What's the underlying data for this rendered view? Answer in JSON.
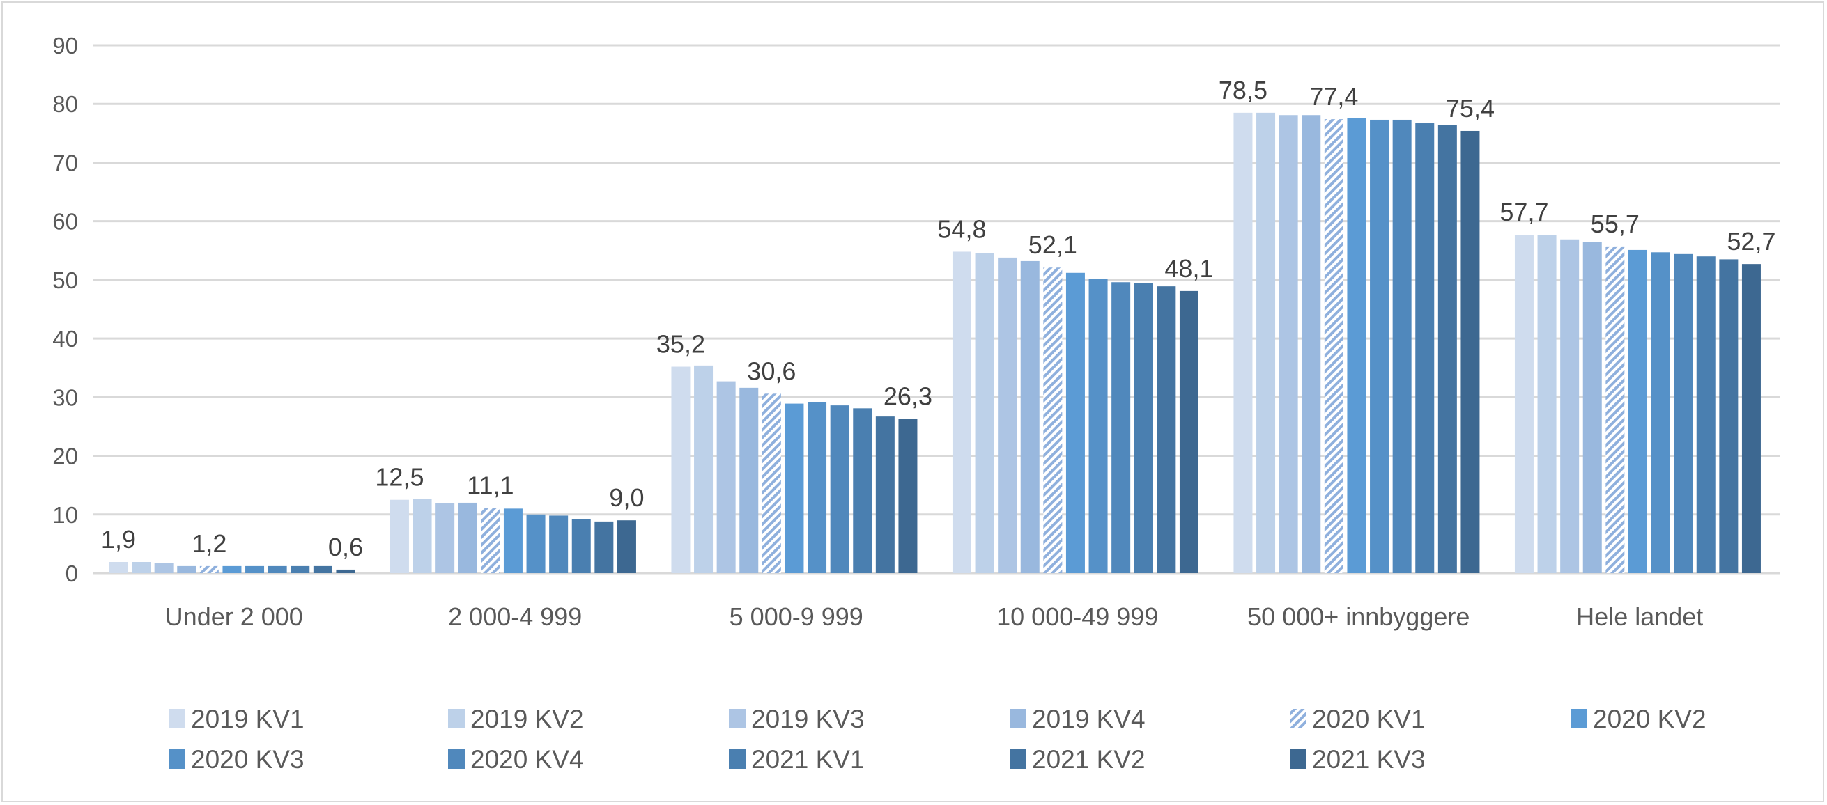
{
  "chart_data": {
    "type": "bar",
    "title": "",
    "xlabel": "",
    "ylabel": "",
    "ylim": [
      0,
      90
    ],
    "yticks": [
      0,
      10,
      20,
      30,
      40,
      50,
      60,
      70,
      80,
      90
    ],
    "grid": true,
    "legend_position": "bottom",
    "categories": [
      "Under 2 000",
      "2 000-4 999",
      "5 000-9 999",
      "10 000-49 999",
      "50 000+ innbyggere",
      "Hele landet"
    ],
    "series": [
      {
        "name": "2019 KV1",
        "color": "#cfdcee",
        "values": [
          1.9,
          12.5,
          35.2,
          54.8,
          78.5,
          57.7
        ],
        "labeled": true
      },
      {
        "name": "2019 KV2",
        "color": "#bdd1e9",
        "values": [
          1.9,
          12.6,
          35.4,
          54.6,
          78.5,
          57.6
        ]
      },
      {
        "name": "2019 KV3",
        "color": "#adc5e4",
        "values": [
          1.7,
          11.9,
          32.7,
          53.8,
          78.1,
          56.9
        ]
      },
      {
        "name": "2019 KV4",
        "color": "#99b8de",
        "values": [
          1.2,
          12.0,
          31.6,
          53.2,
          78.1,
          56.5
        ]
      },
      {
        "name": "2020 KV1",
        "color": "#8fb0dd",
        "pattern": "hatched",
        "values": [
          1.2,
          11.1,
          30.6,
          52.1,
          77.4,
          55.7
        ],
        "labeled": true
      },
      {
        "name": "2020 KV2",
        "color": "#5b9bd5",
        "values": [
          1.2,
          11.0,
          28.9,
          51.2,
          77.6,
          55.1
        ]
      },
      {
        "name": "2020 KV3",
        "color": "#5591c8",
        "values": [
          1.2,
          10.0,
          29.1,
          50.2,
          77.3,
          54.7
        ]
      },
      {
        "name": "2020 KV4",
        "color": "#5088bc",
        "values": [
          1.2,
          9.8,
          28.6,
          49.6,
          77.3,
          54.4
        ]
      },
      {
        "name": "2021 KV1",
        "color": "#4a7fb0",
        "values": [
          1.2,
          9.2,
          28.1,
          49.5,
          76.7,
          54.0
        ]
      },
      {
        "name": "2021 KV2",
        "color": "#4474a1",
        "values": [
          1.2,
          8.8,
          26.7,
          48.9,
          76.4,
          53.5
        ]
      },
      {
        "name": "2021 KV3",
        "color": "#3d6891",
        "values": [
          0.6,
          9.0,
          26.3,
          48.1,
          75.4,
          52.7
        ],
        "labeled": true
      }
    ],
    "data_labels": [
      [
        "1,9",
        "1,2",
        "0,6"
      ],
      [
        "12,5",
        "11,1",
        "9,0"
      ],
      [
        "35,2",
        "30,6",
        "26,3"
      ],
      [
        "54,8",
        "52,1",
        "48,1"
      ],
      [
        "78,5",
        "77,4",
        "75,4"
      ],
      [
        "57,7",
        "55,7",
        "52,7"
      ]
    ]
  }
}
